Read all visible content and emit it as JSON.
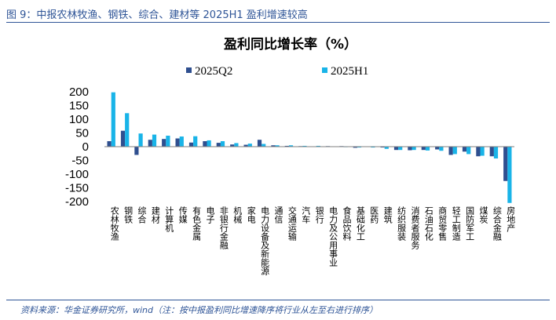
{
  "figure": {
    "title": "图 9：中报农林牧渔、钢铁、综合、建材等 2025H1 盈利增速较高",
    "source": "资料来源：华金证券研究所，wind（注：按中报盈利同比增速降序将行业从左至右进行排序）"
  },
  "colors": {
    "q2": "#2F4F8F",
    "h1": "#19B4E8",
    "text": "#2F5597"
  },
  "chart_data": {
    "type": "bar",
    "title": "盈利同比增长率（%）",
    "xlabel": "",
    "ylabel": "",
    "ylim": [
      -200,
      200
    ],
    "yticks": [
      -200,
      -150,
      -100,
      -50,
      0,
      50,
      100,
      150,
      200
    ],
    "legend_position": "top-center",
    "categories": [
      "农林牧渔",
      "钢铁",
      "综合",
      "建材",
      "计算机",
      "传媒",
      "有色金属",
      "电子",
      "非银行金融",
      "机械",
      "家电",
      "电力设备及新能源",
      "通信",
      "交通运输",
      "汽车",
      "银行",
      "电力及公用事业",
      "食品饮料",
      "基础化工",
      "医药",
      "建筑",
      "纺织服装",
      "消费者服务",
      "石油石化",
      "商贸零售",
      "轻工制造",
      "国防军工",
      "煤炭",
      "综合金融",
      "房地产"
    ],
    "series": [
      {
        "name": "2025Q2",
        "values": [
          20,
          58,
          -30,
          25,
          28,
          30,
          15,
          20,
          14,
          8,
          7,
          25,
          5,
          3,
          2,
          1,
          2,
          2,
          -4,
          1,
          -3,
          -12,
          -13,
          -12,
          -10,
          -30,
          -18,
          -35,
          -35,
          -125
        ]
      },
      {
        "name": "2025H1",
        "values": [
          198,
          122,
          48,
          44,
          40,
          37,
          38,
          23,
          20,
          13,
          11,
          10,
          5,
          5,
          3,
          3,
          1,
          -1,
          -3,
          -3,
          -8,
          -12,
          -12,
          -14,
          -15,
          -27,
          -27,
          -33,
          -43,
          -205
        ]
      }
    ]
  }
}
